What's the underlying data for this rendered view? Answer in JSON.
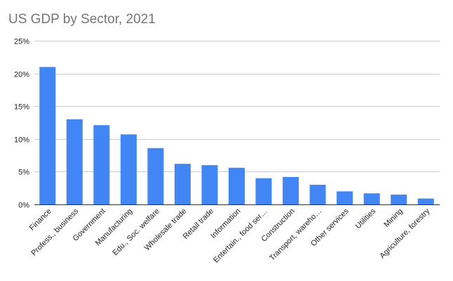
{
  "chart_data": {
    "type": "bar",
    "title": "US GDP by Sector, 2021",
    "xlabel": "",
    "ylabel": "",
    "categories": [
      "Finance",
      "Profess., business",
      "Government",
      "Manufacturing",
      "Edu., Soc. welfare",
      "Wholesale trade",
      "Retail trade",
      "Information",
      "Entertain., food ser…",
      "Construction",
      "Transport, wareho…",
      "Other services",
      "Utilities",
      "Mining",
      "Agriculture, forestry"
    ],
    "series": [
      {
        "values": [
          21.0,
          13.0,
          12.1,
          10.7,
          8.6,
          6.2,
          6.0,
          5.6,
          4.0,
          4.2,
          3.0,
          2.0,
          1.7,
          1.5,
          0.9
        ]
      }
    ],
    "ylim": [
      0,
      25
    ],
    "yticks": [
      "0%",
      "5%",
      "10%",
      "15%",
      "20%",
      "25%"
    ],
    "ytick_values": [
      0,
      5,
      10,
      15,
      20,
      25
    ],
    "grid": true,
    "bar_color": "#4285f4",
    "grid_color": "#cccccc",
    "title_color": "#757575"
  }
}
